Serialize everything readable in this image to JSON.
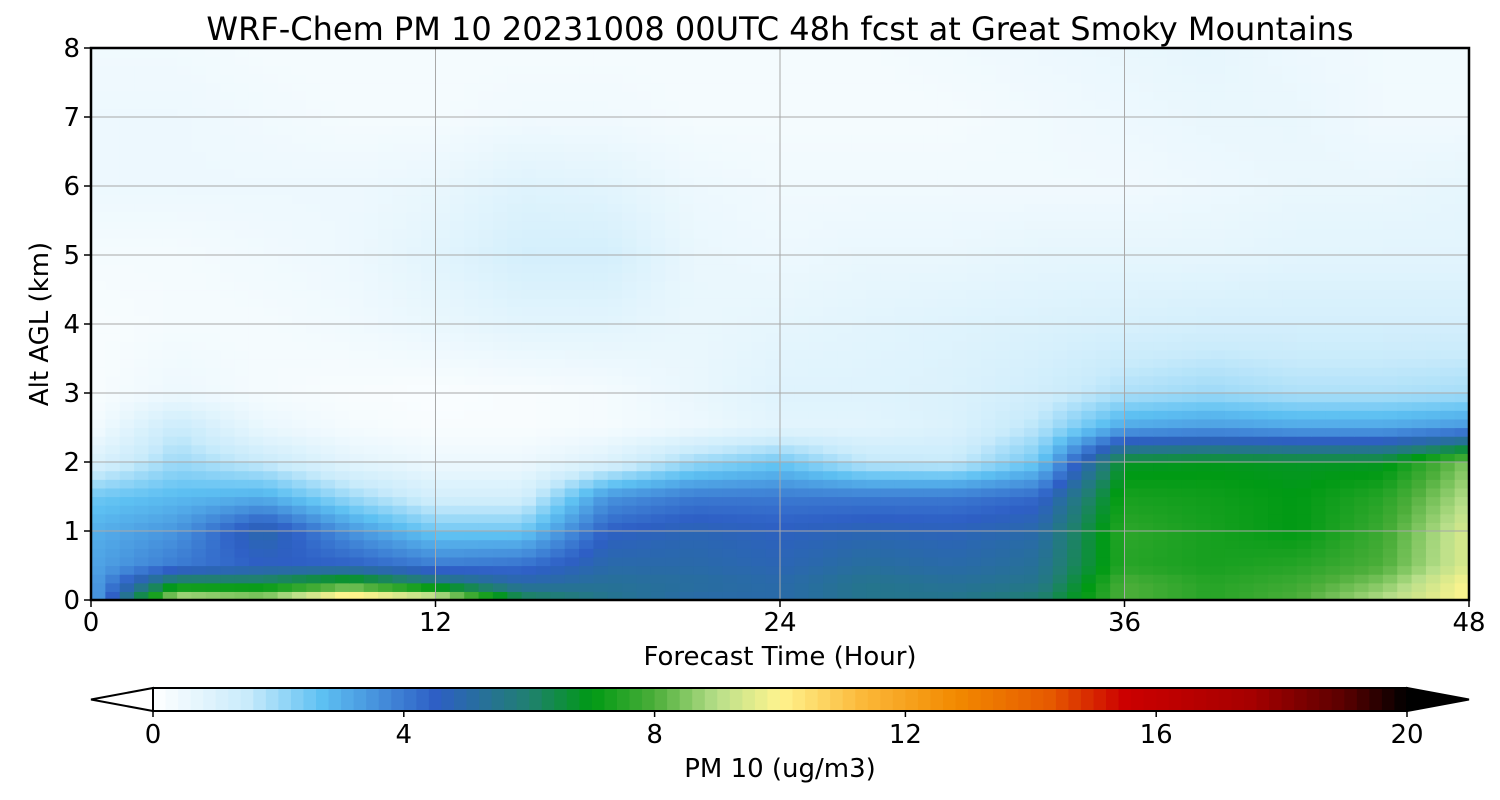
{
  "chart_data": {
    "type": "heatmap",
    "title": "WRF-Chem PM 10  20231008 00UTC 48h fcst at Great Smoky Mountains",
    "xlabel": "Forecast Time (Hour)",
    "ylabel": "Alt AGL (km)",
    "xlim": [
      0,
      48
    ],
    "ylim": [
      0,
      8
    ],
    "x_ticks": [
      "0",
      "12",
      "24",
      "36",
      "48"
    ],
    "y_ticks": [
      "0",
      "1",
      "2",
      "3",
      "4",
      "5",
      "6",
      "7",
      "8"
    ],
    "grid": true,
    "x": [
      0,
      3,
      6,
      9,
      12,
      15,
      18,
      21,
      24,
      27,
      30,
      33,
      36,
      39,
      42,
      45,
      48
    ],
    "y": [
      0,
      0.25,
      0.5,
      1,
      1.5,
      2,
      2.5,
      3,
      4,
      5,
      6,
      7,
      8
    ],
    "z": [
      [
        3.0,
        9.5,
        9.0,
        11.0,
        10.0,
        6.5,
        5.5,
        5.0,
        5.0,
        5.5,
        5.5,
        6.0,
        8.0,
        7.5,
        8.0,
        9.0,
        10.0
      ],
      [
        3.2,
        6.5,
        6.5,
        7.5,
        6.0,
        5.0,
        5.3,
        5.2,
        5.0,
        5.5,
        5.3,
        5.5,
        8.0,
        7.5,
        7.8,
        8.5,
        10.0
      ],
      [
        3.2,
        4.0,
        4.5,
        4.5,
        4.0,
        4.2,
        5.0,
        5.0,
        4.8,
        5.2,
        5.0,
        5.3,
        7.5,
        7.3,
        7.5,
        8.0,
        9.5
      ],
      [
        3.0,
        3.5,
        5.0,
        3.5,
        2.5,
        2.5,
        4.5,
        4.8,
        4.6,
        4.8,
        4.7,
        5.0,
        7.6,
        7.3,
        7.0,
        7.8,
        9.5
      ],
      [
        2.5,
        2.8,
        3.0,
        2.0,
        1.2,
        1.2,
        3.5,
        4.0,
        4.0,
        4.0,
        4.0,
        4.3,
        7.3,
        7.2,
        7.0,
        7.5,
        9.0
      ],
      [
        1.0,
        2.0,
        1.5,
        0.8,
        0.5,
        0.5,
        1.0,
        2.0,
        2.5,
        1.6,
        1.5,
        2.5,
        6.8,
        6.9,
        6.8,
        6.8,
        8.5
      ],
      [
        0.3,
        1.5,
        0.6,
        0.3,
        0.2,
        0.2,
        0.3,
        0.5,
        0.8,
        0.8,
        1.0,
        1.7,
        3.2,
        3.4,
        3.2,
        3.2,
        3.5
      ],
      [
        0.2,
        0.5,
        0.3,
        0.2,
        0.15,
        0.2,
        0.3,
        0.6,
        0.9,
        0.9,
        1.0,
        1.3,
        1.8,
        2.0,
        1.8,
        1.8,
        1.9
      ],
      [
        0.2,
        0.3,
        0.3,
        0.4,
        0.6,
        0.8,
        0.8,
        0.6,
        0.7,
        0.8,
        0.9,
        1.0,
        1.1,
        1.2,
        1.2,
        1.2,
        1.2
      ],
      [
        0.3,
        0.3,
        0.4,
        0.5,
        0.8,
        1.2,
        1.2,
        0.6,
        0.5,
        0.6,
        0.6,
        0.7,
        0.7,
        0.7,
        0.8,
        0.8,
        0.8
      ],
      [
        0.5,
        0.5,
        0.5,
        0.5,
        0.6,
        0.9,
        0.8,
        0.5,
        0.4,
        0.4,
        0.4,
        0.4,
        0.4,
        0.5,
        0.6,
        0.6,
        0.7
      ],
      [
        0.5,
        0.5,
        0.4,
        0.3,
        0.3,
        0.4,
        0.4,
        0.3,
        0.3,
        0.3,
        0.3,
        0.4,
        0.5,
        0.6,
        0.6,
        0.4,
        0.4
      ],
      [
        0.4,
        0.4,
        0.3,
        0.3,
        0.3,
        0.3,
        0.3,
        0.3,
        0.3,
        0.3,
        0.4,
        0.5,
        0.6,
        0.7,
        0.5,
        0.4,
        0.4
      ]
    ],
    "colorbar": {
      "label": "PM 10  (ug/m3)",
      "ticks": [
        "0",
        "4",
        "8",
        "12",
        "16",
        "20"
      ],
      "range": [
        0,
        20
      ],
      "extend": "both",
      "stops": [
        {
          "v": 0,
          "c": "#ffffff"
        },
        {
          "v": 1.5,
          "c": "#c9ebfb"
        },
        {
          "v": 2.7,
          "c": "#5dc0f2"
        },
        {
          "v": 4.5,
          "c": "#2e5fc5"
        },
        {
          "v": 6.0,
          "c": "#208070"
        },
        {
          "v": 7.0,
          "c": "#009a14"
        },
        {
          "v": 8.0,
          "c": "#4cae3a"
        },
        {
          "v": 9.0,
          "c": "#b8df8a"
        },
        {
          "v": 10.0,
          "c": "#fff48e"
        },
        {
          "v": 11.3,
          "c": "#fbb93a"
        },
        {
          "v": 12.8,
          "c": "#f28a00"
        },
        {
          "v": 14.3,
          "c": "#e65a00"
        },
        {
          "v": 15.5,
          "c": "#cc0000"
        },
        {
          "v": 17.5,
          "c": "#a60000"
        },
        {
          "v": 19.0,
          "c": "#5a0000"
        },
        {
          "v": 20.0,
          "c": "#000000"
        }
      ]
    }
  }
}
